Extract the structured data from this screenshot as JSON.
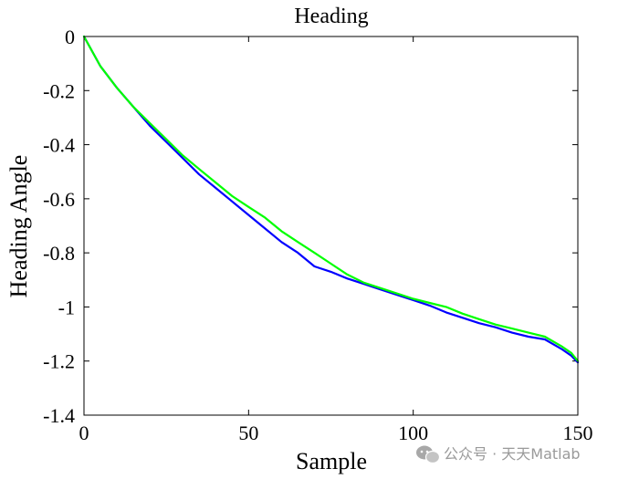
{
  "watermark": {
    "text": "公众号 · 天天Matlab",
    "icon": "wechat-icon"
  },
  "chart_data": {
    "type": "line",
    "title": "Heading",
    "xlabel": "Sample",
    "ylabel": "Heading Angle",
    "xlim": [
      0,
      150
    ],
    "ylim": [
      -1.4,
      0
    ],
    "xticks": [
      0,
      50,
      100,
      150
    ],
    "xtick_labels": [
      "0",
      "50",
      "100",
      "150"
    ],
    "yticks": [
      0,
      -0.2,
      -0.4,
      -0.6,
      -0.8,
      -1,
      -1.2,
      -1.4
    ],
    "ytick_labels": [
      "0",
      "-0.2",
      "-0.4",
      "-0.6",
      "-0.8",
      "-1",
      "-1.2",
      "-1.4"
    ],
    "grid": false,
    "legend": "none",
    "series": [
      {
        "color": "#0000ff",
        "x": [
          0,
          5,
          10,
          15,
          20,
          25,
          30,
          35,
          40,
          45,
          50,
          55,
          60,
          65,
          70,
          75,
          80,
          85,
          90,
          95,
          100,
          105,
          110,
          115,
          120,
          125,
          130,
          135,
          140,
          145,
          148,
          150
        ],
        "y": [
          0,
          -0.11,
          -0.19,
          -0.26,
          -0.33,
          -0.39,
          -0.45,
          -0.51,
          -0.56,
          -0.61,
          -0.66,
          -0.71,
          -0.76,
          -0.8,
          -0.85,
          -0.87,
          -0.895,
          -0.915,
          -0.935,
          -0.955,
          -0.975,
          -0.995,
          -1.02,
          -1.04,
          -1.06,
          -1.075,
          -1.095,
          -1.11,
          -1.12,
          -1.155,
          -1.18,
          -1.205
        ]
      },
      {
        "color": "#00ff00",
        "x": [
          0,
          5,
          10,
          15,
          20,
          25,
          30,
          35,
          40,
          45,
          50,
          55,
          60,
          65,
          70,
          75,
          80,
          85,
          90,
          95,
          100,
          105,
          110,
          115,
          120,
          125,
          130,
          135,
          140,
          145,
          148,
          150
        ],
        "y": [
          0,
          -0.11,
          -0.19,
          -0.26,
          -0.32,
          -0.38,
          -0.44,
          -0.49,
          -0.54,
          -0.59,
          -0.63,
          -0.67,
          -0.72,
          -0.76,
          -0.8,
          -0.84,
          -0.88,
          -0.91,
          -0.93,
          -0.95,
          -0.97,
          -0.985,
          -1.0,
          -1.025,
          -1.045,
          -1.065,
          -1.08,
          -1.095,
          -1.11,
          -1.145,
          -1.17,
          -1.2
        ]
      }
    ]
  }
}
